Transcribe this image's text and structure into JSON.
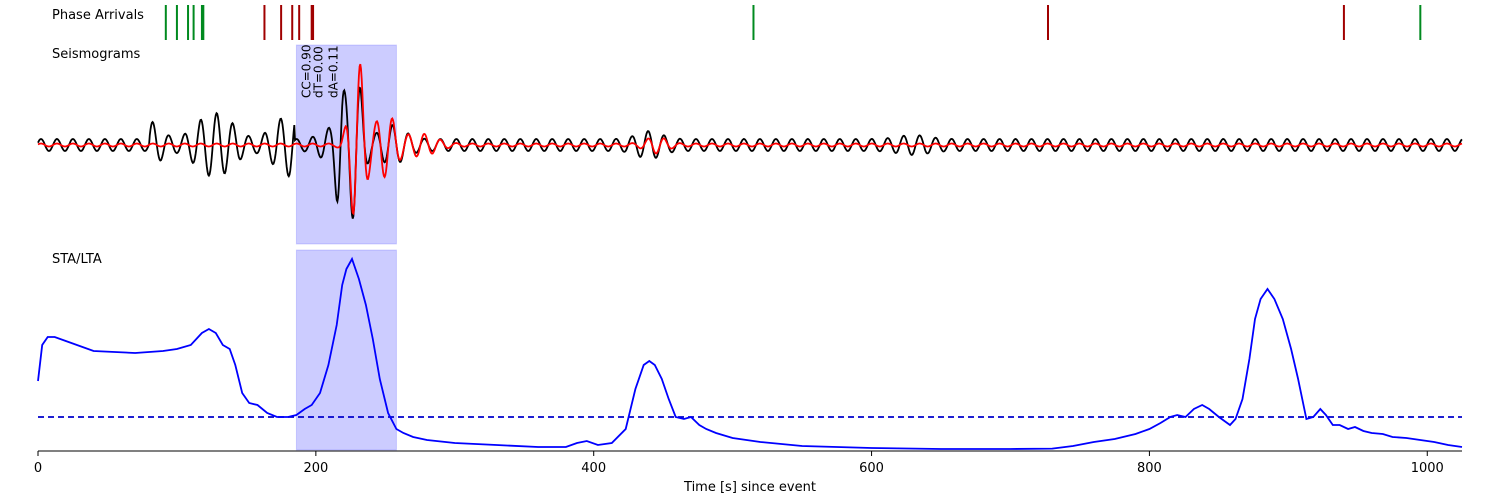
{
  "chart_data": {
    "type": "line",
    "xlabel": "Time [s] since event",
    "xlim": [
      0,
      1025
    ],
    "xticks": [
      0,
      200,
      400,
      600,
      800,
      1000
    ],
    "window": [
      186,
      258
    ],
    "panels": {
      "phase": {
        "label": "Phase Arrivals",
        "colors": {
          "p": "#008a1f",
          "s": "#a00000"
        },
        "p_arrivals": [
          92,
          100,
          108,
          112,
          118,
          119,
          515,
          995
        ],
        "s_arrivals": [
          163,
          175,
          183,
          188,
          197,
          198,
          727,
          940
        ]
      },
      "seismograms": {
        "label": "Seismograms",
        "stats": [
          "CC=0.90",
          "dT=0.00",
          "dA=0.11"
        ],
        "series": [
          {
            "color": "#000000",
            "kind": "observed"
          },
          {
            "color": "#ff0000",
            "kind": "synthetic"
          }
        ]
      },
      "stalta": {
        "label": "STA/LTA",
        "color": "#0000ff",
        "threshold": 0.16,
        "x": [
          0,
          3,
          7,
          12,
          20,
          40,
          70,
          90,
          100,
          110,
          118,
          123,
          128,
          133,
          138,
          142,
          147,
          152,
          158,
          165,
          172,
          180,
          186,
          192,
          197,
          203,
          209,
          215,
          219,
          222,
          226,
          231,
          236,
          241,
          246,
          252,
          258,
          263,
          270,
          280,
          300,
          330,
          360,
          380,
          388,
          395,
          403,
          413,
          423,
          430,
          436,
          440,
          444,
          449,
          454,
          459,
          465,
          470,
          476,
          481,
          488,
          500,
          520,
          550,
          600,
          650,
          700,
          730,
          745,
          760,
          775,
          790,
          800,
          808,
          815,
          820,
          826,
          832,
          838,
          843,
          850,
          858,
          862,
          867,
          872,
          876,
          880,
          885,
          890,
          896,
          902,
          907,
          913,
          918,
          923,
          927,
          932,
          937,
          943,
          948,
          954,
          960,
          968,
          975,
          985,
          995,
          1005,
          1015,
          1025
        ],
        "y": [
          0.34,
          0.52,
          0.56,
          0.56,
          0.54,
          0.49,
          0.48,
          0.49,
          0.5,
          0.52,
          0.58,
          0.6,
          0.58,
          0.52,
          0.5,
          0.42,
          0.28,
          0.23,
          0.22,
          0.18,
          0.16,
          0.16,
          0.17,
          0.2,
          0.22,
          0.28,
          0.42,
          0.62,
          0.82,
          0.9,
          0.95,
          0.85,
          0.72,
          0.55,
          0.35,
          0.18,
          0.1,
          0.08,
          0.06,
          0.045,
          0.03,
          0.02,
          0.01,
          0.01,
          0.03,
          0.04,
          0.02,
          0.03,
          0.1,
          0.3,
          0.42,
          0.44,
          0.42,
          0.35,
          0.25,
          0.16,
          0.15,
          0.16,
          0.12,
          0.1,
          0.08,
          0.055,
          0.035,
          0.015,
          0.005,
          0.0,
          0.0,
          0.002,
          0.015,
          0.035,
          0.05,
          0.075,
          0.1,
          0.13,
          0.16,
          0.17,
          0.16,
          0.2,
          0.22,
          0.2,
          0.16,
          0.12,
          0.15,
          0.25,
          0.45,
          0.65,
          0.75,
          0.8,
          0.75,
          0.65,
          0.5,
          0.35,
          0.15,
          0.16,
          0.2,
          0.17,
          0.12,
          0.12,
          0.1,
          0.11,
          0.09,
          0.08,
          0.075,
          0.06,
          0.055,
          0.045,
          0.035,
          0.02,
          0.01
        ]
      }
    }
  }
}
